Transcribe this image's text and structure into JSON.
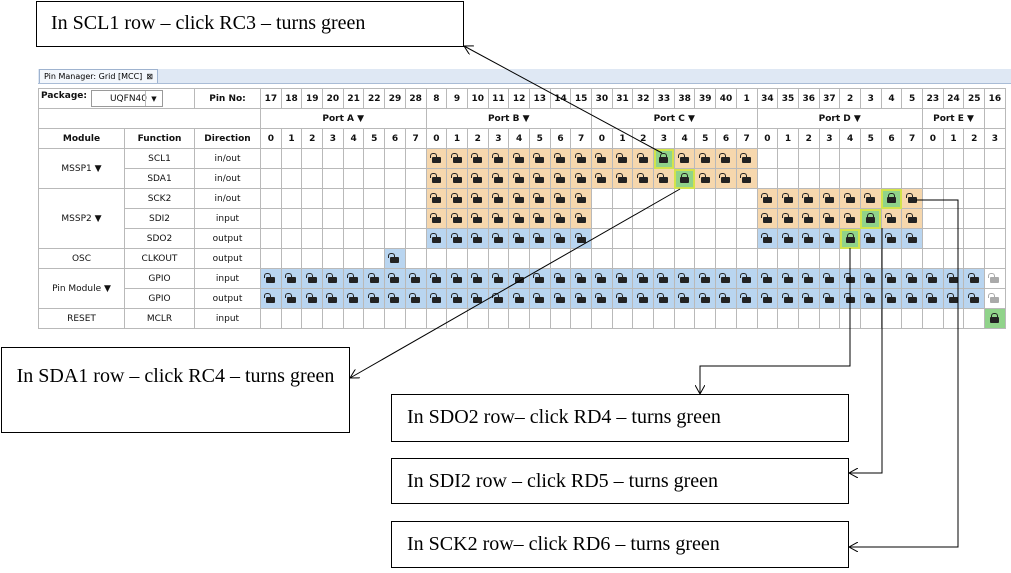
{
  "window": {
    "tab_title": "Pin Manager: Grid [MCC]",
    "tab_close": "⊠"
  },
  "package": {
    "label": "Package:",
    "value": "UQFN40"
  },
  "pin_no_label": "Pin No:",
  "pin_numbers": [
    "17",
    "18",
    "19",
    "20",
    "21",
    "22",
    "29",
    "28",
    "8",
    "9",
    "10",
    "11",
    "12",
    "13",
    "14",
    "15",
    "30",
    "31",
    "32",
    "33",
    "38",
    "39",
    "40",
    "1",
    "34",
    "35",
    "36",
    "37",
    "2",
    "3",
    "4",
    "5",
    "23",
    "24",
    "25",
    "16"
  ],
  "ports": [
    {
      "name": "Port A ▼",
      "span": 8
    },
    {
      "name": "Port B ▼",
      "span": 8
    },
    {
      "name": "Port C ▼",
      "span": 8
    },
    {
      "name": "Port D ▼",
      "span": 8
    },
    {
      "name": "Port E ▼",
      "span": 3
    },
    {
      "name": "",
      "span": 1
    }
  ],
  "bit_numbers": [
    "0",
    "1",
    "2",
    "3",
    "4",
    "5",
    "6",
    "7",
    "0",
    "1",
    "2",
    "3",
    "4",
    "5",
    "6",
    "7",
    "0",
    "1",
    "2",
    "3",
    "4",
    "5",
    "6",
    "7",
    "0",
    "1",
    "2",
    "3",
    "4",
    "5",
    "6",
    "7",
    "0",
    "1",
    "2",
    "3"
  ],
  "columns": {
    "module": "Module",
    "function": "Function",
    "direction": "Direction"
  },
  "modules": [
    {
      "name": "MSSP1 ▼",
      "rows": [
        {
          "function": "SCL1",
          "direction": "in/out",
          "cells": [
            [
              8,
              "i"
            ],
            [
              9,
              "i"
            ],
            [
              10,
              "i"
            ],
            [
              11,
              "i"
            ],
            [
              12,
              "i"
            ],
            [
              13,
              "i"
            ],
            [
              14,
              "i"
            ],
            [
              15,
              "i"
            ],
            [
              16,
              "i"
            ],
            [
              17,
              "i"
            ],
            [
              18,
              "i"
            ],
            [
              19,
              "s"
            ],
            [
              20,
              "i"
            ],
            [
              21,
              "i"
            ],
            [
              22,
              "i"
            ],
            [
              23,
              "i"
            ]
          ],
          "highlight": 19
        },
        {
          "function": "SDA1",
          "direction": "in/out",
          "cells": [
            [
              8,
              "i"
            ],
            [
              9,
              "i"
            ],
            [
              10,
              "i"
            ],
            [
              11,
              "i"
            ],
            [
              12,
              "i"
            ],
            [
              13,
              "i"
            ],
            [
              14,
              "i"
            ],
            [
              15,
              "i"
            ],
            [
              16,
              "i"
            ],
            [
              17,
              "i"
            ],
            [
              18,
              "i"
            ],
            [
              19,
              "i"
            ],
            [
              20,
              "s"
            ],
            [
              21,
              "i"
            ],
            [
              22,
              "i"
            ],
            [
              23,
              "i"
            ]
          ],
          "highlight": 20
        }
      ]
    },
    {
      "name": "MSSP2 ▼",
      "rows": [
        {
          "function": "SCK2",
          "direction": "in/out",
          "cells": [
            [
              8,
              "i"
            ],
            [
              9,
              "i"
            ],
            [
              10,
              "i"
            ],
            [
              11,
              "i"
            ],
            [
              12,
              "i"
            ],
            [
              13,
              "i"
            ],
            [
              14,
              "i"
            ],
            [
              15,
              "i"
            ],
            [
              24,
              "i"
            ],
            [
              25,
              "i"
            ],
            [
              26,
              "i"
            ],
            [
              27,
              "i"
            ],
            [
              28,
              "i"
            ],
            [
              29,
              "i"
            ],
            [
              30,
              "s"
            ],
            [
              31,
              "i"
            ]
          ],
          "highlight": 30
        },
        {
          "function": "SDI2",
          "direction": "input",
          "cells": [
            [
              8,
              "i"
            ],
            [
              9,
              "i"
            ],
            [
              10,
              "i"
            ],
            [
              11,
              "i"
            ],
            [
              12,
              "i"
            ],
            [
              13,
              "i"
            ],
            [
              14,
              "i"
            ],
            [
              15,
              "i"
            ],
            [
              24,
              "i"
            ],
            [
              25,
              "i"
            ],
            [
              26,
              "i"
            ],
            [
              27,
              "i"
            ],
            [
              28,
              "i"
            ],
            [
              29,
              "s"
            ],
            [
              30,
              "i"
            ],
            [
              31,
              "i"
            ]
          ],
          "highlight": 29
        },
        {
          "function": "SDO2",
          "direction": "output",
          "cells": [
            [
              8,
              "o"
            ],
            [
              9,
              "o"
            ],
            [
              10,
              "o"
            ],
            [
              11,
              "o"
            ],
            [
              12,
              "o"
            ],
            [
              13,
              "o"
            ],
            [
              14,
              "o"
            ],
            [
              15,
              "o"
            ],
            [
              24,
              "o"
            ],
            [
              25,
              "o"
            ],
            [
              26,
              "o"
            ],
            [
              27,
              "o"
            ],
            [
              28,
              "s"
            ],
            [
              29,
              "o"
            ],
            [
              30,
              "o"
            ],
            [
              31,
              "o"
            ]
          ],
          "highlight": 28
        }
      ]
    },
    {
      "name": "OSC",
      "rows": [
        {
          "function": "CLKOUT",
          "direction": "output",
          "cells": [
            [
              6,
              "o"
            ]
          ]
        }
      ]
    },
    {
      "name": "Pin Module ▼",
      "rows": [
        {
          "function": "GPIO",
          "direction": "input",
          "cells": [
            [
              0,
              "o"
            ],
            [
              1,
              "o"
            ],
            [
              2,
              "o"
            ],
            [
              3,
              "o"
            ],
            [
              4,
              "o"
            ],
            [
              5,
              "o"
            ],
            [
              6,
              "o"
            ],
            [
              7,
              "o"
            ],
            [
              8,
              "o"
            ],
            [
              9,
              "o"
            ],
            [
              10,
              "o"
            ],
            [
              11,
              "o"
            ],
            [
              12,
              "o"
            ],
            [
              13,
              "o"
            ],
            [
              14,
              "o"
            ],
            [
              15,
              "o"
            ],
            [
              16,
              "o"
            ],
            [
              17,
              "o"
            ],
            [
              18,
              "o"
            ],
            [
              19,
              "o"
            ],
            [
              20,
              "o"
            ],
            [
              21,
              "o"
            ],
            [
              22,
              "o"
            ],
            [
              23,
              "o"
            ],
            [
              24,
              "o"
            ],
            [
              25,
              "o"
            ],
            [
              26,
              "o"
            ],
            [
              27,
              "o"
            ],
            [
              28,
              "o"
            ],
            [
              29,
              "o"
            ],
            [
              30,
              "o"
            ],
            [
              31,
              "o"
            ],
            [
              32,
              "o"
            ],
            [
              33,
              "o"
            ],
            [
              34,
              "o"
            ],
            [
              35,
              "g"
            ]
          ]
        },
        {
          "function": "GPIO",
          "direction": "output",
          "cells": [
            [
              0,
              "o"
            ],
            [
              1,
              "o"
            ],
            [
              2,
              "o"
            ],
            [
              3,
              "o"
            ],
            [
              4,
              "o"
            ],
            [
              5,
              "o"
            ],
            [
              6,
              "o"
            ],
            [
              7,
              "o"
            ],
            [
              8,
              "o"
            ],
            [
              9,
              "o"
            ],
            [
              10,
              "o"
            ],
            [
              11,
              "o"
            ],
            [
              12,
              "o"
            ],
            [
              13,
              "o"
            ],
            [
              14,
              "o"
            ],
            [
              15,
              "o"
            ],
            [
              16,
              "o"
            ],
            [
              17,
              "o"
            ],
            [
              18,
              "o"
            ],
            [
              19,
              "o"
            ],
            [
              20,
              "o"
            ],
            [
              21,
              "o"
            ],
            [
              22,
              "o"
            ],
            [
              23,
              "o"
            ],
            [
              24,
              "o"
            ],
            [
              25,
              "o"
            ],
            [
              26,
              "o"
            ],
            [
              27,
              "o"
            ],
            [
              28,
              "o"
            ],
            [
              29,
              "o"
            ],
            [
              30,
              "o"
            ],
            [
              31,
              "o"
            ],
            [
              32,
              "o"
            ],
            [
              33,
              "o"
            ],
            [
              34,
              "o"
            ],
            [
              35,
              "g"
            ]
          ]
        }
      ]
    },
    {
      "name": "RESET",
      "rows": [
        {
          "function": "MCLR",
          "direction": "input",
          "cells": [
            [
              35,
              "s"
            ]
          ]
        }
      ]
    }
  ],
  "callouts": {
    "scl1": "In SCL1 row – click RC3 – turns green",
    "sda1": "In SDA1 row – click RC4 – turns green",
    "sdo2": "In SDO2 row– click RD4 – turns green",
    "sdi2": "In SDI2 row – click RD5 – turns green",
    "sck2": "In SCK2 row– click RD6 – turns green"
  },
  "colors": {
    "input_cell": "#f6d7ad",
    "output_cell": "#b9d5f0",
    "selected_cell": "#90d38a",
    "highlight": "#d3e34b"
  }
}
